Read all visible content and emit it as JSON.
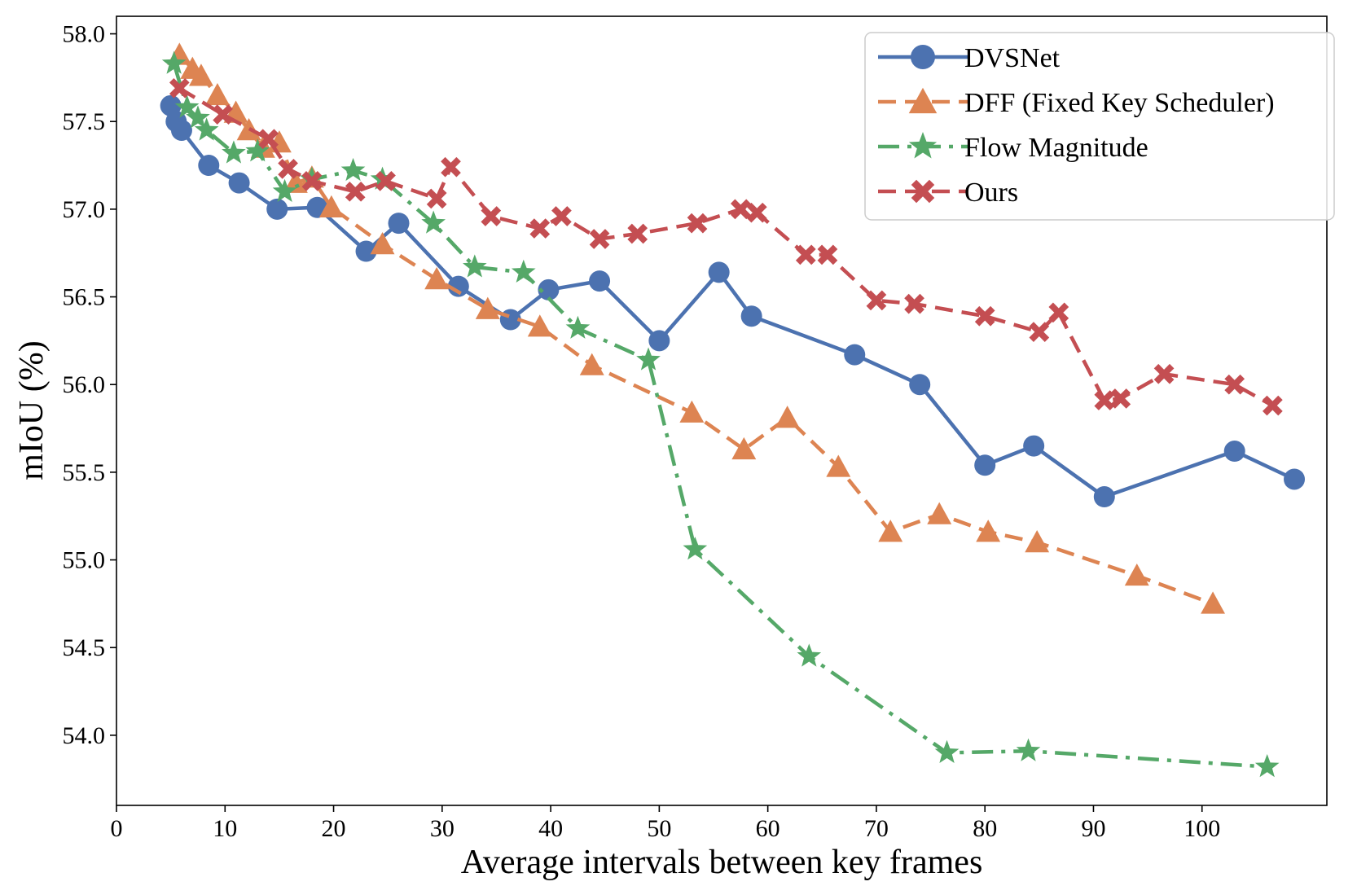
{
  "chart_data": {
    "type": "line",
    "title": "",
    "xlabel": "Average intervals between key frames",
    "ylabel": "mIoU (%)",
    "xlim": [
      0,
      111.5
    ],
    "ylim": [
      53.6,
      58.1
    ],
    "xticks": [
      0,
      10,
      20,
      30,
      40,
      50,
      60,
      70,
      80,
      90,
      100
    ],
    "yticks": [
      54.0,
      54.5,
      55.0,
      55.5,
      56.0,
      56.5,
      57.0,
      57.5,
      58.0
    ],
    "ytick_labels": [
      "54.0",
      "54.5",
      "55.0",
      "55.5",
      "56.0",
      "56.5",
      "57.0",
      "57.5",
      "58.0"
    ],
    "grid": false,
    "legend_position": "top-right",
    "series": [
      {
        "name": "DVSNet",
        "color": "#4c72b0",
        "line_style": "solid",
        "marker": "circle",
        "x": [
          5,
          5.5,
          6,
          8.5,
          11.3,
          14.8,
          18.5,
          23,
          26,
          31.5,
          36.3,
          39.8,
          44.5,
          50,
          55.5,
          58.5,
          68,
          74,
          80,
          84.5,
          91,
          103,
          108.5
        ],
        "y": [
          57.59,
          57.5,
          57.45,
          57.25,
          57.15,
          57.0,
          57.01,
          56.76,
          56.92,
          56.56,
          56.37,
          56.54,
          56.59,
          56.25,
          56.64,
          56.39,
          56.17,
          56.0,
          55.54,
          55.65,
          55.36,
          55.62,
          55.46
        ]
      },
      {
        "name": "DFF (Fixed Key Scheduler)",
        "color": "#dd8452",
        "line_style": "dashed",
        "marker": "triangle",
        "x": [
          5.8,
          7,
          7.8,
          9.3,
          11,
          12.2,
          13.5,
          15,
          16.5,
          18,
          19.8,
          24.5,
          29.5,
          34.2,
          39,
          43.8,
          53,
          57.8,
          61.8,
          66.5,
          71.3,
          75.8,
          80.3,
          84.8,
          94,
          101
        ],
        "y": [
          57.88,
          57.8,
          57.76,
          57.65,
          57.55,
          57.45,
          57.35,
          57.38,
          57.15,
          57.18,
          57.01,
          56.8,
          56.6,
          56.43,
          56.33,
          56.11,
          55.84,
          55.63,
          55.81,
          55.53,
          55.16,
          55.26,
          55.16,
          55.1,
          54.91,
          54.75
        ]
      },
      {
        "name": "Flow Magnitude",
        "color": "#55a868",
        "line_style": "dashdot",
        "marker": "star",
        "x": [
          5.3,
          6.5,
          7.5,
          8.3,
          10.8,
          13,
          15.5,
          18,
          21.8,
          24.5,
          29.2,
          33,
          37.5,
          42.5,
          49,
          53.3,
          63.8,
          76.5,
          84,
          106
        ],
        "y": [
          57.83,
          57.58,
          57.52,
          57.45,
          57.32,
          57.33,
          57.1,
          57.17,
          57.22,
          57.17,
          56.92,
          56.67,
          56.64,
          56.32,
          56.14,
          55.06,
          54.45,
          53.9,
          53.91,
          53.82
        ]
      },
      {
        "name": "Ours",
        "color": "#c44e52",
        "line_style": "dashed",
        "marker": "x",
        "x": [
          5.8,
          9.8,
          14,
          15.8,
          18,
          22,
          24.8,
          29.5,
          30.8,
          34.5,
          39,
          41,
          44.5,
          48,
          53.5,
          57.5,
          59,
          63.5,
          65.5,
          70,
          73.5,
          80,
          85,
          86.8,
          91,
          92.5,
          96.5,
          103,
          106.5
        ],
        "y": [
          57.69,
          57.54,
          57.4,
          57.23,
          57.16,
          57.1,
          57.16,
          57.06,
          57.24,
          56.96,
          56.89,
          56.96,
          56.83,
          56.86,
          56.92,
          57.0,
          56.98,
          56.74,
          56.74,
          56.48,
          56.46,
          56.39,
          56.3,
          56.41,
          55.91,
          55.92,
          56.06,
          56.0,
          55.88
        ]
      }
    ]
  }
}
